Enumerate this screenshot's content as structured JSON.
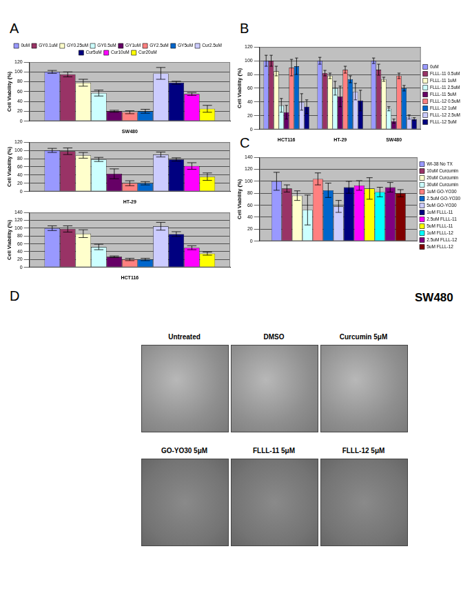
{
  "chart_data": [
    {
      "type": "bar",
      "categories": [
        "SW480"
      ],
      "y_label": "Cell Viability (%)",
      "ylim": [
        0,
        120
      ],
      "yticks": [
        0,
        20,
        40,
        60,
        80,
        100,
        120
      ],
      "grid": true,
      "legend": "top",
      "series": [
        {
          "name": "0uM",
          "color": "#9999FF",
          "values": [
            100
          ],
          "errors": [
            3
          ]
        },
        {
          "name": "GY0.1uM",
          "color": "#993366",
          "values": [
            95
          ],
          "errors": [
            5
          ]
        },
        {
          "name": "GY0.25uM",
          "color": "#FFFFCC",
          "values": [
            78
          ],
          "errors": [
            7
          ]
        },
        {
          "name": "GY0.5uM",
          "color": "#CCFFFF",
          "values": [
            57
          ],
          "errors": [
            6
          ]
        },
        {
          "name": "GY1uM",
          "color": "#660066",
          "values": [
            20
          ],
          "errors": [
            2
          ]
        },
        {
          "name": "GY2.5uM",
          "color": "#FF8080",
          "values": [
            18
          ],
          "errors": [
            3
          ]
        },
        {
          "name": "GY5uM",
          "color": "#0066CC",
          "values": [
            20
          ],
          "errors": [
            4
          ]
        },
        {
          "name": "Cur2.5uM",
          "color": "#CCCCFF",
          "values": [
            97
          ],
          "errors": [
            12
          ]
        },
        {
          "name": "Cur5uM",
          "color": "#000080",
          "values": [
            78
          ],
          "errors": [
            3
          ]
        },
        {
          "name": "Cur10uM",
          "color": "#FF00FF",
          "values": [
            55
          ],
          "errors": [
            3
          ]
        },
        {
          "name": "Cur20uM",
          "color": "#FFFF00",
          "values": [
            25
          ],
          "errors": [
            7
          ]
        }
      ]
    },
    {
      "type": "bar",
      "categories": [
        "HT-29"
      ],
      "y_label": "Cell Viability (%)",
      "ylim": [
        0,
        120
      ],
      "yticks": [
        0,
        20,
        40,
        60,
        80,
        100,
        120
      ],
      "grid": true,
      "series": [
        {
          "name": "0uM",
          "color": "#9999FF",
          "values": [
            100
          ],
          "errors": [
            5
          ]
        },
        {
          "name": "GY0.1uM",
          "color": "#993366",
          "values": [
            98
          ],
          "errors": [
            8
          ]
        },
        {
          "name": "GY0.25uM",
          "color": "#FFFFCC",
          "values": [
            88
          ],
          "errors": [
            7
          ]
        },
        {
          "name": "GY0.5uM",
          "color": "#CCFFFF",
          "values": [
            78
          ],
          "errors": [
            5
          ]
        },
        {
          "name": "GY1uM",
          "color": "#660066",
          "values": [
            43
          ],
          "errors": [
            12
          ]
        },
        {
          "name": "GY2.5uM",
          "color": "#FF8080",
          "values": [
            20
          ],
          "errors": [
            6
          ]
        },
        {
          "name": "GY5uM",
          "color": "#0066CC",
          "values": [
            20
          ],
          "errors": [
            4
          ]
        },
        {
          "name": "Cur2.5uM",
          "color": "#CCCCFF",
          "values": [
            90
          ],
          "errors": [
            6
          ]
        },
        {
          "name": "Cur5uM",
          "color": "#000080",
          "values": [
            78
          ],
          "errors": [
            4
          ]
        },
        {
          "name": "Cur10uM",
          "color": "#FF00FF",
          "values": [
            62
          ],
          "errors": [
            8
          ]
        },
        {
          "name": "Cur20uM",
          "color": "#FFFF00",
          "values": [
            36
          ],
          "errors": [
            9
          ]
        }
      ]
    },
    {
      "type": "bar",
      "categories": [
        "HCT116"
      ],
      "y_label": "Cell Viability (%)",
      "ylim": [
        0,
        140
      ],
      "yticks": [
        0,
        20,
        40,
        60,
        80,
        100,
        120,
        140
      ],
      "grid": true,
      "series": [
        {
          "name": "0uM",
          "color": "#9999FF",
          "values": [
            100
          ],
          "errors": [
            6
          ]
        },
        {
          "name": "GY0.1uM",
          "color": "#993366",
          "values": [
            98
          ],
          "errors": [
            8
          ]
        },
        {
          "name": "GY0.25uM",
          "color": "#FFFFCC",
          "values": [
            86
          ],
          "errors": [
            10
          ]
        },
        {
          "name": "GY0.5uM",
          "color": "#CCFFFF",
          "values": [
            52
          ],
          "errors": [
            7
          ]
        },
        {
          "name": "GY1uM",
          "color": "#660066",
          "values": [
            27
          ],
          "errors": [
            2
          ]
        },
        {
          "name": "GY2.5uM",
          "color": "#FF8080",
          "values": [
            20
          ],
          "errors": [
            3
          ]
        },
        {
          "name": "GY5uM",
          "color": "#0066CC",
          "values": [
            20
          ],
          "errors": [
            3
          ]
        },
        {
          "name": "Cur2.5uM",
          "color": "#CCCCFF",
          "values": [
            105
          ],
          "errors": [
            10
          ]
        },
        {
          "name": "Cur5uM",
          "color": "#000080",
          "values": [
            85
          ],
          "errors": [
            6
          ]
        },
        {
          "name": "Cur10uM",
          "color": "#FF00FF",
          "values": [
            50
          ],
          "errors": [
            5
          ]
        },
        {
          "name": "Cur20uM",
          "color": "#FFFF00",
          "values": [
            35
          ],
          "errors": [
            4
          ]
        }
      ]
    },
    {
      "type": "bar",
      "categories": [
        "HCT116",
        "HT-29",
        "SW480"
      ],
      "y_label": "Cell Viability (%)",
      "ylim": [
        0,
        120
      ],
      "yticks": [
        0,
        20,
        40,
        60,
        80,
        100,
        120
      ],
      "grid": true,
      "legend": "right",
      "series": [
        {
          "name": "0uM",
          "color": "#9999FF",
          "values": [
            100,
            100,
            100
          ],
          "errors": [
            8,
            5,
            4
          ]
        },
        {
          "name": "FLLL-11 0.5uM",
          "color": "#993366",
          "values": [
            100,
            82,
            87
          ],
          "errors": [
            8,
            4,
            8
          ]
        },
        {
          "name": "FLLL-11 1uM",
          "color": "#FFFFCC",
          "values": [
            85,
            78,
            73
          ],
          "errors": [
            7,
            4,
            3
          ]
        },
        {
          "name": "FLLL-11 2.5uM",
          "color": "#CCFFFF",
          "values": [
            35,
            60,
            30
          ],
          "errors": [
            10,
            10,
            3
          ]
        },
        {
          "name": "FLLL-11 5uM",
          "color": "#660066",
          "values": [
            25,
            48,
            12
          ],
          "errors": [
            10,
            15,
            3
          ]
        },
        {
          "name": "FLLL-12 0.5uM",
          "color": "#FF8080",
          "values": [
            90,
            87,
            78
          ],
          "errors": [
            12,
            5,
            4
          ]
        },
        {
          "name": "FLLL-12 1uM",
          "color": "#0066CC",
          "values": [
            92,
            73,
            60
          ],
          "errors": [
            12,
            5,
            4
          ]
        },
        {
          "name": "FLLL-12 2.5uM",
          "color": "#CCCCFF",
          "values": [
            40,
            55,
            18
          ],
          "errors": [
            12,
            12,
            3
          ]
        },
        {
          "name": "FLLL-12 5uM",
          "color": "#000080",
          "values": [
            33,
            42,
            15
          ],
          "errors": [
            10,
            15,
            2
          ]
        }
      ]
    },
    {
      "type": "bar",
      "categories": [
        null
      ],
      "y_label": "Cell Viability (%)",
      "ylim": [
        0,
        140
      ],
      "yticks": [
        0,
        20,
        40,
        60,
        80,
        100,
        120,
        140
      ],
      "grid": true,
      "legend": "right",
      "series": [
        {
          "name": "WI-38 No TX",
          "color": "#9999FF",
          "values": [
            100
          ],
          "errors": [
            15
          ]
        },
        {
          "name": "10uM Curcumin",
          "color": "#993366",
          "values": [
            88
          ],
          "errors": [
            6
          ]
        },
        {
          "name": "20uM Curcumin",
          "color": "#FFFFCC",
          "values": [
            76
          ],
          "errors": [
            8
          ]
        },
        {
          "name": "30uM Curcumin",
          "color": "#CCFFFF",
          "values": [
            52
          ],
          "errors": [
            25
          ]
        },
        {
          "name": "1uM GO-YO30",
          "color": "#FF8080",
          "values": [
            104
          ],
          "errors": [
            10
          ]
        },
        {
          "name": "2.5uM GO-YO30",
          "color": "#0066CC",
          "values": [
            85
          ],
          "errors": [
            12
          ]
        },
        {
          "name": "5uM GO-YO30",
          "color": "#CCCCFF",
          "values": [
            58
          ],
          "errors": [
            10
          ]
        },
        {
          "name": "1uM FLLL-11",
          "color": "#000080",
          "values": [
            90
          ],
          "errors": [
            10
          ]
        },
        {
          "name": "2.5uM FLLL-11",
          "color": "#FF00FF",
          "values": [
            93
          ],
          "errors": [
            8
          ]
        },
        {
          "name": "5uM FLLL-11",
          "color": "#FFFF00",
          "values": [
            88
          ],
          "errors": [
            18
          ]
        },
        {
          "name": "1uM FLLL-12",
          "color": "#00FFFF",
          "values": [
            82
          ],
          "errors": [
            8
          ]
        },
        {
          "name": "2.5uM FLLL-12",
          "color": "#800080",
          "values": [
            90
          ],
          "errors": [
            8
          ]
        },
        {
          "name": "5uM FLLL-12",
          "color": "#800000",
          "values": [
            80
          ],
          "errors": [
            6
          ]
        }
      ]
    }
  ],
  "panel_labels": [
    "A",
    "B",
    "C",
    "D"
  ],
  "micrographs": {
    "title": "SW480",
    "images": [
      "Untreated",
      "DMSO",
      "Curcumin 5μM",
      "GO-YO30 5μM",
      "FLLL-11 5μM",
      "FLLL-12 5μM"
    ]
  }
}
